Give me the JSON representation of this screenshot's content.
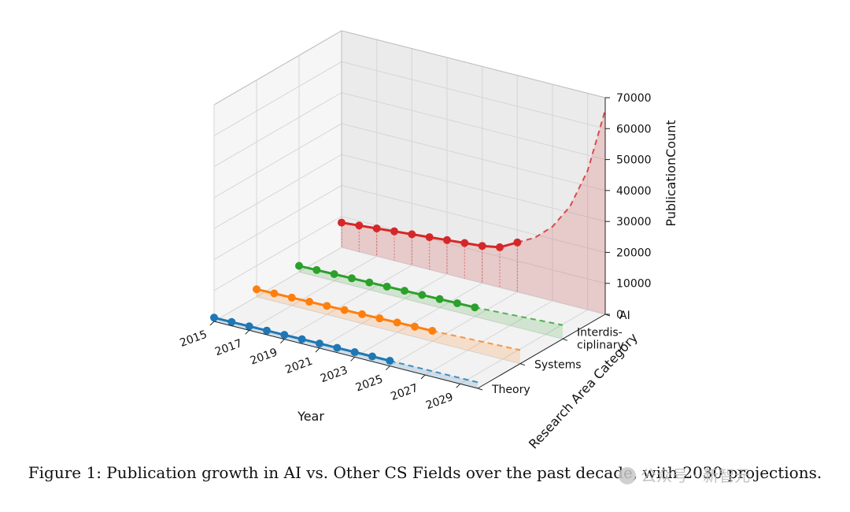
{
  "chart_data": {
    "type": "line",
    "projection": "3d",
    "xlabel": "Year",
    "ylabel": "Research Area Category",
    "zlabel": "PublicationCount",
    "xlim": [
      2015,
      2030
    ],
    "zlim": [
      0,
      70000
    ],
    "x_ticks": [
      "2015",
      "2017",
      "2019",
      "2021",
      "2023",
      "2025",
      "2027",
      "2029"
    ],
    "z_ticks": [
      "0",
      "10000",
      "20000",
      "30000",
      "40000",
      "50000",
      "60000",
      "70000"
    ],
    "categories": [
      "Theory",
      "Systems",
      "Interdis-\nciplinary",
      "AI"
    ],
    "series": [
      {
        "name": "Theory",
        "color": "#1f77b4",
        "x": [
          2015,
          2016,
          2017,
          2018,
          2019,
          2020,
          2021,
          2022,
          2023,
          2024,
          2025
        ],
        "values": [
          1200,
          1250,
          1300,
          1350,
          1400,
          1450,
          1500,
          1550,
          1600,
          1650,
          1700
        ],
        "projection_x": [
          2025,
          2026,
          2027,
          2028,
          2029,
          2030
        ],
        "projection_values": [
          1700,
          1750,
          1800,
          1850,
          1900,
          1950
        ]
      },
      {
        "name": "Systems",
        "color": "#ff7f0e",
        "x": [
          2015,
          2016,
          2017,
          2018,
          2019,
          2020,
          2021,
          2022,
          2023,
          2024,
          2025
        ],
        "values": [
          2400,
          2500,
          2600,
          2700,
          2800,
          2900,
          3000,
          3100,
          3200,
          3300,
          3400
        ],
        "projection_x": [
          2025,
          2026,
          2027,
          2028,
          2029,
          2030
        ],
        "projection_values": [
          3400,
          3600,
          3800,
          4000,
          4200,
          4400
        ]
      },
      {
        "name": "Interdisciplinary",
        "color": "#2ca02c",
        "x": [
          2015,
          2016,
          2017,
          2018,
          2019,
          2020,
          2021,
          2022,
          2023,
          2024,
          2025
        ],
        "values": [
          2000,
          2100,
          2200,
          2300,
          2400,
          2500,
          2600,
          2700,
          2800,
          2900,
          3000
        ],
        "projection_x": [
          2025,
          2026,
          2027,
          2028,
          2029,
          2030
        ],
        "projection_values": [
          3000,
          3300,
          3600,
          3900,
          4200,
          4500
        ]
      },
      {
        "name": "AI",
        "color": "#d62728",
        "x": [
          2015,
          2016,
          2017,
          2018,
          2019,
          2020,
          2021,
          2022,
          2023,
          2024,
          2025
        ],
        "values": [
          8000,
          8500,
          9000,
          9500,
          10000,
          10500,
          11000,
          11500,
          12000,
          13000,
          16000
        ],
        "projection_x": [
          2025,
          2026,
          2027,
          2028,
          2029,
          2030
        ],
        "projection_values": [
          16000,
          19000,
          24000,
          32000,
          45000,
          66000
        ]
      }
    ]
  },
  "caption": "Figure 1: Publication growth in AI vs. Other CS Fields over the past decade, with 2030 projections.",
  "watermark": "公众号 · 新智元"
}
